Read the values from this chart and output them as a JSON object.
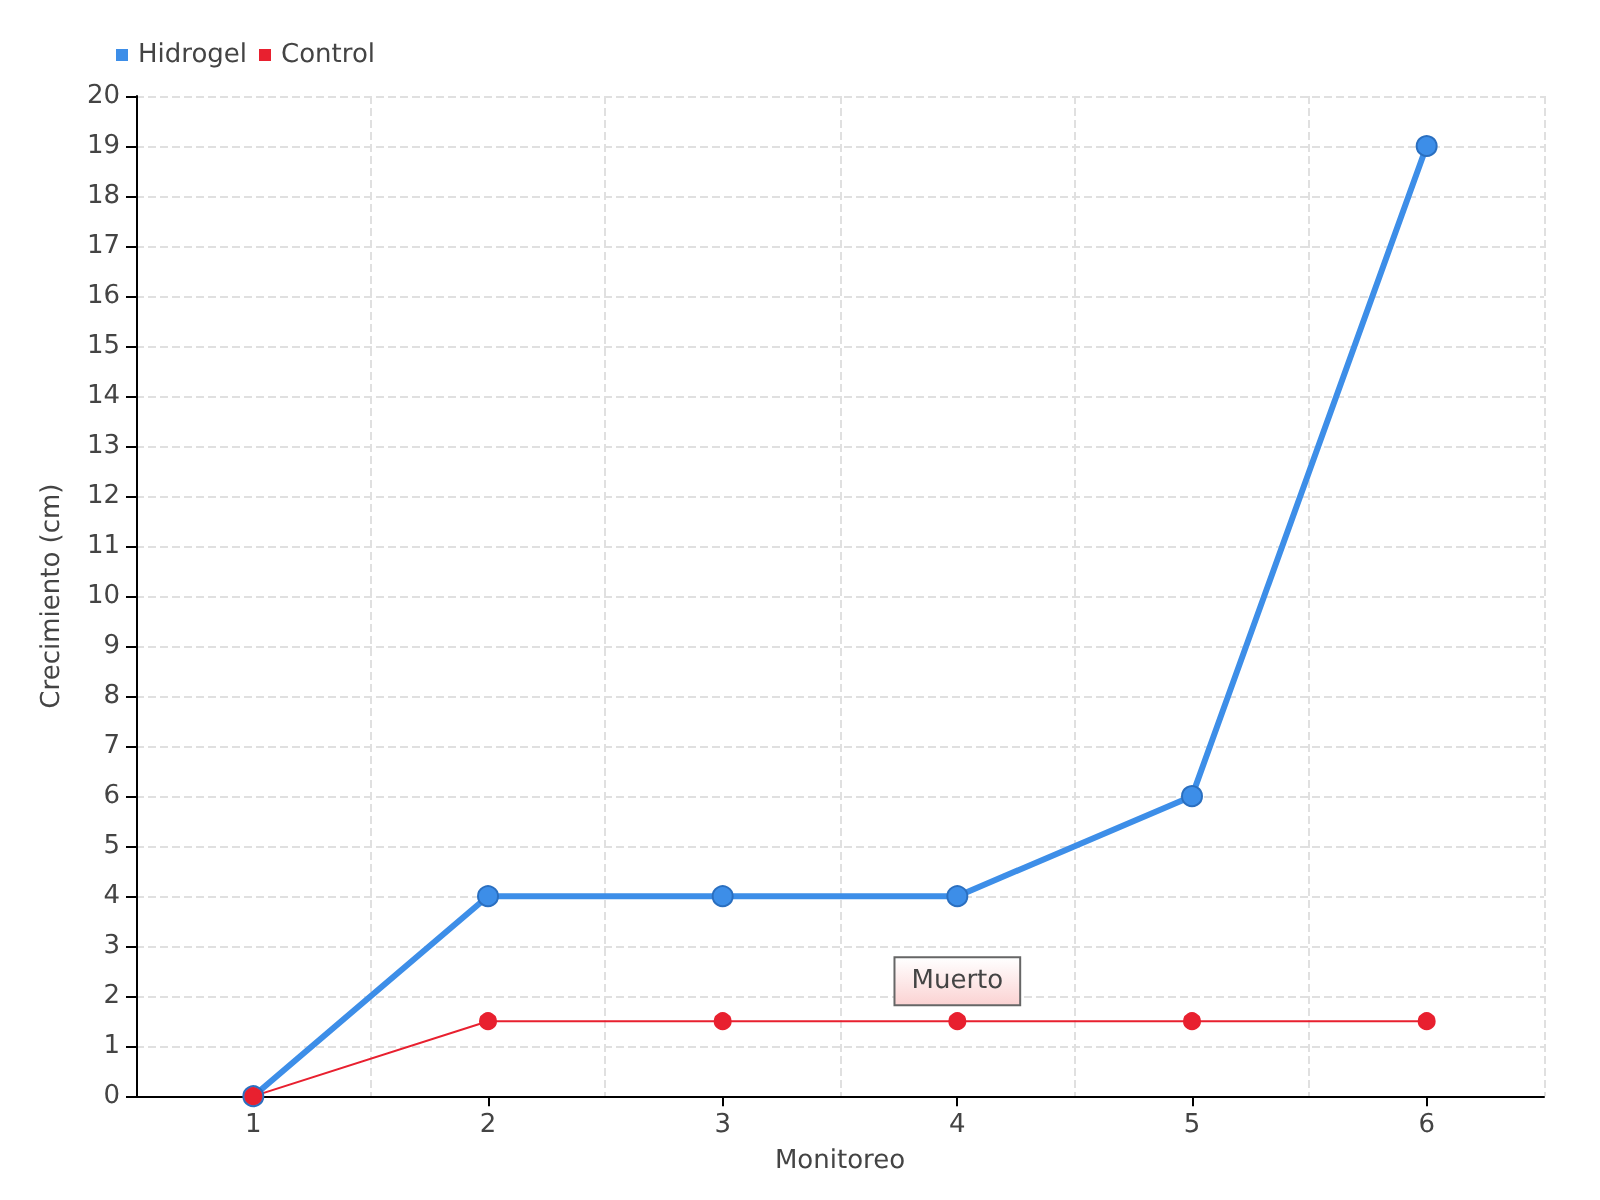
{
  "chart_data": {
    "type": "line",
    "xlabel": "Monitoreo",
    "ylabel": "Crecimiento (cm)",
    "categories": [
      "1",
      "2",
      "3",
      "4",
      "5",
      "6"
    ],
    "series": [
      {
        "name": "Hidrogel",
        "color": "#3d8ee8",
        "values": [
          0,
          4,
          4,
          4,
          6,
          19
        ]
      },
      {
        "name": "Control",
        "color": "#e8202f",
        "values": [
          0,
          1.5,
          1.5,
          1.5,
          1.5,
          1.5
        ]
      }
    ],
    "ylim": [
      0,
      20
    ],
    "yticks": [
      0,
      1,
      2,
      3,
      4,
      5,
      6,
      7,
      8,
      9,
      10,
      11,
      12,
      13,
      14,
      15,
      16,
      17,
      18,
      19,
      20
    ],
    "annotations": [
      {
        "text": "Muerto",
        "x": "4",
        "y": 1.5
      }
    ],
    "grid": true,
    "legend": "top left",
    "marker": "circle",
    "line_style": "solid"
  }
}
